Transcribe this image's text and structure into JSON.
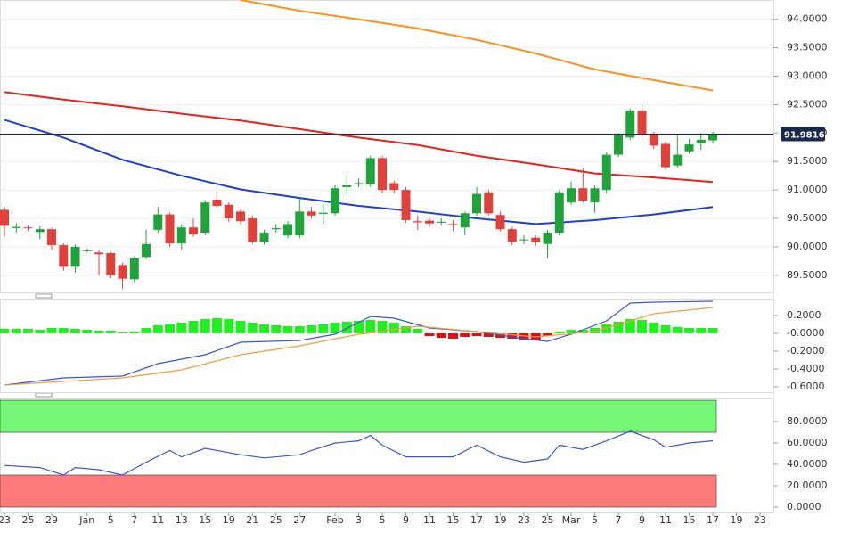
{
  "chart_data": [
    {
      "type": "candlestick",
      "xlim": [
        -0.38,
        65.13
      ],
      "ylim": [
        89.2,
        94.34
      ],
      "grid": true,
      "yticks": [
        {
          "value": 89.5,
          "label": "89.5000"
        },
        {
          "value": 90,
          "label": "90.0000"
        },
        {
          "value": 90.5,
          "label": "90.5000"
        },
        {
          "value": 91,
          "label": "91.0000"
        },
        {
          "value": 91.5,
          "label": "91.5000"
        },
        {
          "value": 92,
          "label": "92.0000"
        },
        {
          "value": 92.5,
          "label": "92.5000"
        },
        {
          "value": 93,
          "label": "93.0000"
        },
        {
          "value": 93.5,
          "label": "93.5000"
        },
        {
          "value": 94,
          "label": "94.0000"
        }
      ],
      "up_color": "#1fa33a",
      "down_color": "#e0413b",
      "open": [
        90.65,
        90.33,
        90.34,
        90.26,
        90.31,
        90.03,
        89.65,
        89.93,
        89.9,
        89.89,
        89.68,
        89.43,
        89.82,
        90.3,
        90.57,
        90.06,
        90.34,
        90.25,
        90.83,
        90.74,
        90.62,
        90.5,
        90.09,
        90.31,
        90.2,
        90.2,
        90.62,
        90.58,
        90.59,
        91.05,
        91.1,
        91.1,
        91.56,
        91.12,
        91.0,
        90.45,
        90.46,
        90.43,
        90.4,
        90.34,
        90.59,
        90.96,
        90.56,
        90.31,
        90.12,
        90.16,
        90.05,
        90.25,
        90.78,
        91.03,
        90.78,
        91.0,
        91.62,
        91.92,
        92.39,
        91.97,
        91.81,
        91.43,
        91.68,
        91.82,
        91.87
      ],
      "high": [
        90.7,
        90.42,
        90.38,
        90.36,
        90.34,
        90.06,
        90.04,
        89.97,
        89.95,
        89.92,
        89.72,
        89.84,
        90.3,
        90.7,
        90.6,
        90.4,
        90.5,
        90.82,
        90.98,
        90.78,
        90.66,
        90.55,
        90.3,
        90.4,
        90.45,
        90.85,
        90.7,
        90.75,
        91.08,
        91.27,
        91.2,
        91.6,
        91.6,
        91.16,
        91.05,
        90.55,
        90.5,
        90.5,
        90.47,
        90.62,
        91.05,
        91.0,
        90.62,
        90.35,
        90.2,
        90.2,
        90.3,
        91.0,
        91.15,
        91.38,
        91.08,
        91.66,
        92.0,
        92.43,
        92.5,
        92.02,
        91.85,
        91.95,
        91.9,
        92.0,
        92.02
      ],
      "low": [
        90.18,
        90.25,
        90.28,
        90.14,
        89.95,
        89.58,
        89.55,
        89.9,
        89.5,
        89.45,
        89.26,
        89.38,
        89.78,
        90.25,
        90.0,
        89.95,
        90.18,
        90.2,
        90.68,
        90.44,
        90.4,
        90.05,
        90.04,
        90.25,
        90.15,
        90.15,
        90.5,
        90.4,
        90.55,
        90.9,
        91.05,
        91.05,
        90.95,
        90.95,
        90.42,
        90.3,
        90.35,
        90.38,
        90.28,
        90.2,
        90.55,
        90.55,
        90.27,
        90.03,
        90.05,
        90.02,
        89.8,
        90.2,
        90.74,
        90.77,
        90.6,
        90.95,
        91.58,
        91.88,
        91.93,
        91.72,
        91.36,
        91.39,
        91.64,
        91.7,
        91.82
      ],
      "close": [
        90.37,
        90.35,
        90.33,
        90.31,
        90.03,
        89.65,
        90.0,
        89.94,
        89.87,
        89.5,
        89.44,
        89.8,
        90.05,
        90.57,
        90.06,
        90.34,
        90.22,
        90.78,
        90.72,
        90.5,
        90.45,
        90.09,
        90.25,
        90.33,
        90.4,
        90.62,
        90.55,
        90.6,
        91.03,
        91.08,
        91.12,
        91.56,
        91.0,
        91.0,
        90.47,
        90.43,
        90.41,
        90.44,
        90.39,
        90.59,
        90.93,
        90.59,
        90.31,
        90.09,
        90.13,
        90.08,
        90.25,
        90.96,
        91.03,
        90.81,
        91.03,
        91.62,
        91.96,
        92.39,
        91.97,
        91.78,
        91.4,
        91.62,
        91.8,
        91.88,
        91.98
      ],
      "series": [
        {
          "color": "#f7931e",
          "x": [
            20,
            25,
            30,
            35,
            40,
            45,
            50,
            55,
            60
          ],
          "values": [
            94.34,
            94.15,
            94.0,
            93.84,
            93.64,
            93.4,
            93.12,
            92.93,
            92.75
          ]
        },
        {
          "color": "#e8201c",
          "x": [
            0,
            5,
            10,
            15,
            20,
            25,
            30,
            35,
            40,
            45,
            50,
            55,
            60
          ],
          "values": [
            92.72,
            92.59,
            92.47,
            92.34,
            92.22,
            92.07,
            91.92,
            91.79,
            91.6,
            91.45,
            91.29,
            91.22,
            91.14
          ]
        },
        {
          "color": "#1c3fd6",
          "x": [
            0,
            5,
            10,
            15,
            20,
            25,
            30,
            35,
            40,
            45,
            50,
            55,
            60
          ],
          "values": [
            92.23,
            91.92,
            91.53,
            91.25,
            91.01,
            90.86,
            90.72,
            90.62,
            90.5,
            90.4,
            90.47,
            90.57,
            90.7
          ]
        }
      ],
      "last_price": 91.9816,
      "last_price_color": "#1b2a4a"
    },
    {
      "type": "macd",
      "xlim": [
        -0.38,
        65.13
      ],
      "ylim": [
        -0.66,
        0.38
      ],
      "yticks": [
        {
          "value": 0.2,
          "label": "0.2000"
        },
        {
          "value": 0,
          "label": "-0.0000"
        },
        {
          "value": -0.2,
          "label": "-0.2000"
        },
        {
          "value": -0.4,
          "label": "-0.4000"
        },
        {
          "value": -0.6,
          "label": "-0.6000"
        }
      ],
      "up_color": "#22ee22",
      "down_color": "#dd1111",
      "values": [
        0.05,
        0.05,
        0.05,
        0.04,
        0.06,
        0.06,
        0.05,
        0.04,
        0.03,
        0.03,
        0.01,
        0.02,
        0.06,
        0.09,
        0.1,
        0.12,
        0.14,
        0.16,
        0.17,
        0.16,
        0.14,
        0.12,
        0.1,
        0.09,
        0.08,
        0.08,
        0.09,
        0.1,
        0.12,
        0.13,
        0.14,
        0.15,
        0.14,
        0.12,
        0.08,
        0.05,
        -0.03,
        -0.05,
        -0.06,
        -0.04,
        -0.03,
        -0.04,
        -0.05,
        -0.06,
        -0.07,
        -0.08,
        -0.03,
        0.02,
        0.04,
        0.04,
        0.06,
        0.1,
        0.13,
        0.16,
        0.15,
        0.12,
        0.09,
        0.07,
        0.06,
        0.06,
        0.06
      ],
      "series": [
        {
          "color": "#3a56d4",
          "x": [
            0,
            5,
            10,
            13,
            17,
            20,
            25,
            28,
            31,
            33,
            36,
            40,
            44,
            46,
            48,
            51,
            53,
            55,
            60
          ],
          "values": [
            -0.58,
            -0.5,
            -0.48,
            -0.34,
            -0.24,
            -0.1,
            -0.08,
            -0.01,
            0.19,
            0.17,
            0.06,
            0.02,
            -0.06,
            -0.09,
            -0.01,
            0.14,
            0.34,
            0.35,
            0.36
          ]
        },
        {
          "color": "#f39a3c",
          "x": [
            0,
            10,
            15,
            20,
            25,
            30,
            35,
            40,
            45,
            50,
            55,
            60
          ],
          "values": [
            -0.58,
            -0.5,
            -0.41,
            -0.24,
            -0.14,
            -0.01,
            0.08,
            0.02,
            -0.04,
            0.02,
            0.22,
            0.29
          ]
        }
      ]
    },
    {
      "type": "rsi",
      "xlim": [
        -0.38,
        65.13
      ],
      "ylim": [
        -5,
        101.7
      ],
      "yticks": [
        {
          "value": 0,
          "label": "0.0000"
        },
        {
          "value": 20,
          "label": "20.0000"
        },
        {
          "value": 40,
          "label": "40.0000"
        },
        {
          "value": 60,
          "label": "60.0000"
        },
        {
          "value": 80,
          "label": "80.0000"
        }
      ],
      "xticks": [
        {
          "value": 0,
          "label": "23"
        },
        {
          "value": 2,
          "label": "25"
        },
        {
          "value": 4,
          "label": "29"
        },
        {
          "value": 7,
          "label": "Jan"
        },
        {
          "value": 9,
          "label": "5"
        },
        {
          "value": 11,
          "label": "7"
        },
        {
          "value": 13,
          "label": "11"
        },
        {
          "value": 15,
          "label": "13"
        },
        {
          "value": 17,
          "label": "15"
        },
        {
          "value": 19,
          "label": "19"
        },
        {
          "value": 21,
          "label": "21"
        },
        {
          "value": 23,
          "label": "25"
        },
        {
          "value": 25,
          "label": "27"
        },
        {
          "value": 28,
          "label": "Feb"
        },
        {
          "value": 30,
          "label": "3"
        },
        {
          "value": 32,
          "label": "5"
        },
        {
          "value": 34,
          "label": "9"
        },
        {
          "value": 36,
          "label": "11"
        },
        {
          "value": 38,
          "label": "15"
        },
        {
          "value": 40,
          "label": "17"
        },
        {
          "value": 42,
          "label": "19"
        },
        {
          "value": 44,
          "label": "23"
        },
        {
          "value": 46,
          "label": "25"
        },
        {
          "value": 48,
          "label": "Mar"
        },
        {
          "value": 50,
          "label": "5"
        },
        {
          "value": 52,
          "label": "7"
        },
        {
          "value": 54,
          "label": "9"
        },
        {
          "value": 56,
          "label": "11"
        },
        {
          "value": 58,
          "label": "15"
        },
        {
          "value": 60,
          "label": "17"
        },
        {
          "value": 62,
          "label": "19"
        },
        {
          "value": 64,
          "label": "23"
        }
      ],
      "bands": [
        {
          "from": 70,
          "to": 100,
          "color": "#77f777"
        },
        {
          "from": 0,
          "to": 30,
          "color": "#ff7b7b"
        }
      ],
      "series": [
        {
          "color": "#3a56d4",
          "x": [
            0,
            3,
            5,
            6,
            8,
            10,
            12,
            14,
            15,
            17,
            20,
            22,
            25,
            26,
            28,
            30,
            31,
            32,
            34,
            38,
            40,
            42,
            44,
            46,
            47,
            49,
            51,
            53,
            55,
            56,
            58,
            60
          ],
          "values": [
            39,
            37,
            30,
            37,
            35,
            30,
            42,
            53,
            47,
            55,
            49,
            46,
            49,
            53,
            60,
            62,
            67,
            58,
            47,
            47,
            58,
            47,
            42,
            45,
            58,
            54,
            62,
            71,
            63,
            56,
            60,
            62
          ]
        }
      ]
    }
  ]
}
